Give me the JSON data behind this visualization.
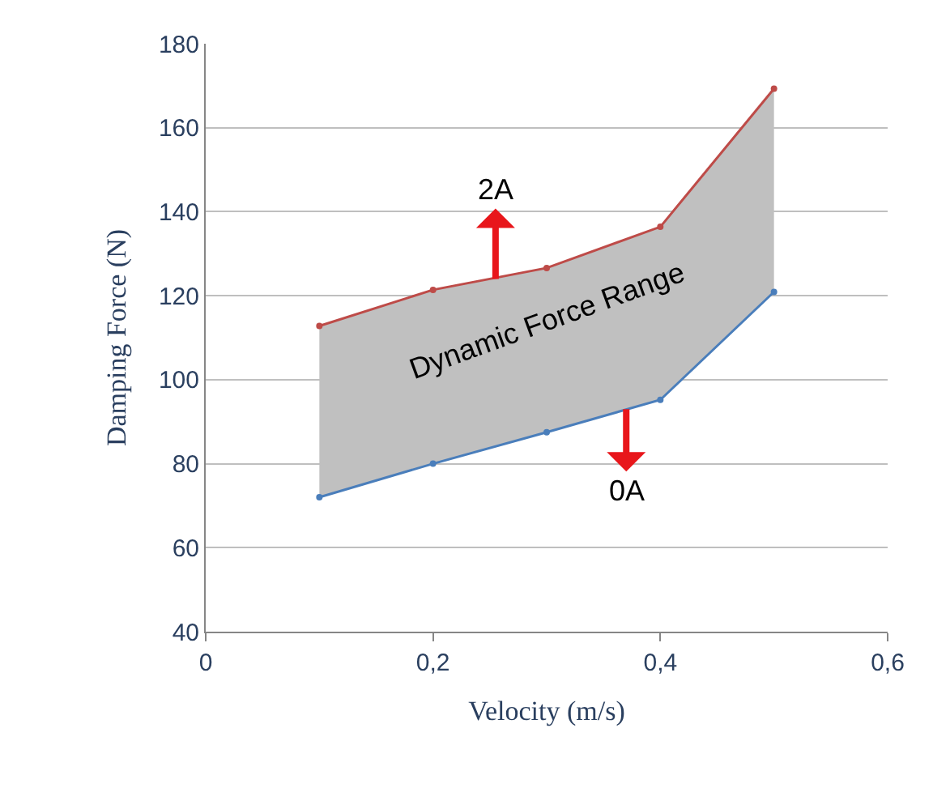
{
  "chart_data": {
    "type": "line",
    "xlabel": "Velocity (m/s)",
    "ylabel": "Damping Force (N)",
    "x": [
      0.1,
      0.2,
      0.3,
      0.4,
      0.5
    ],
    "series": [
      {
        "color": "#4a7ebb",
        "values": [
          72,
          80,
          87.5,
          95.2,
          120.9
        ]
      },
      {
        "color": "#be4b48",
        "values": [
          112.8,
          121.4,
          126.6,
          136.4,
          169.3
        ],
        "lower": [
          72,
          80,
          87.5,
          95.2,
          120.9
        ],
        "upper": [
          112.8,
          121.4,
          126.6,
          136.4,
          169.3
        ]
      }
    ],
    "xlim": [
      0,
      0.6
    ],
    "xticks": [
      0,
      {
        "value": 0.2,
        "label": "0,2"
      },
      {
        "value": 0.4,
        "label": "0,4"
      },
      {
        "value": 0.6,
        "label": "0,6"
      }
    ],
    "ylim": [
      40,
      180
    ],
    "yticks": [
      40,
      60,
      80,
      100,
      120,
      140,
      160,
      180
    ],
    "grid": "y",
    "marker": "circle",
    "annotations": [
      {
        "text": "2A",
        "x": 0.255,
        "y": 124
      },
      {
        "text": "0A",
        "x": 0.37,
        "y": 93
      },
      "Dynamic Force Range"
    ]
  }
}
